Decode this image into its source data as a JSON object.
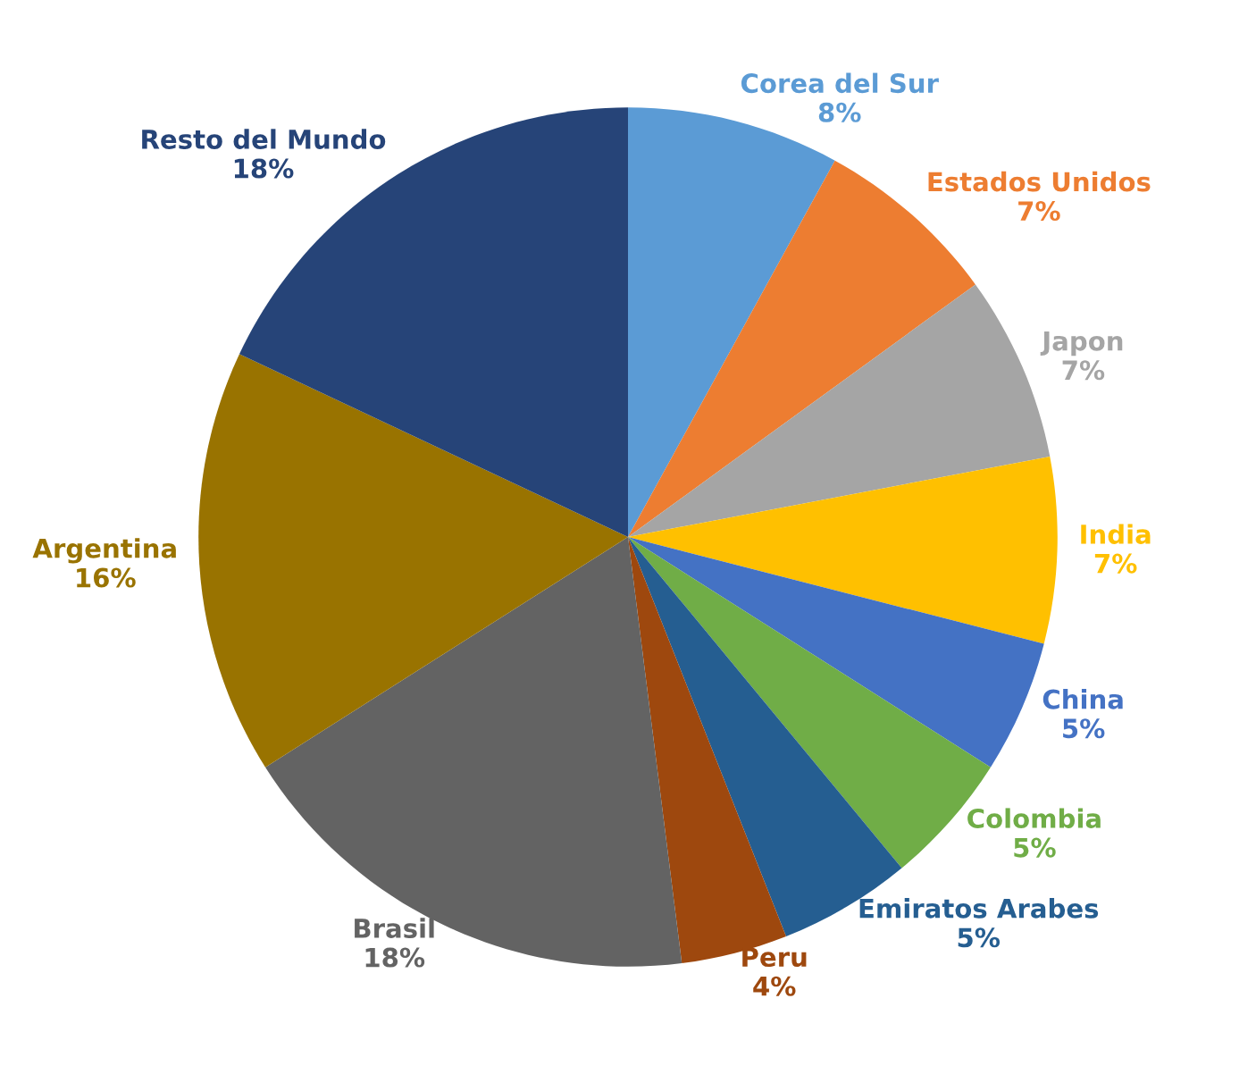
{
  "chart_data": {
    "type": "pie",
    "categories": [
      "Corea del Sur",
      "Estados Unidos",
      "Japon",
      "India",
      "China",
      "Colombia",
      "Emiratos Arabes",
      "Peru",
      "Brasil",
      "Argentina",
      "Resto del Mundo"
    ],
    "values": [
      8,
      7,
      7,
      7,
      5,
      5,
      5,
      4,
      18,
      16,
      18
    ],
    "value_labels": [
      "8%",
      "7%",
      "7%",
      "7%",
      "5%",
      "5%",
      "5%",
      "4%",
      "18%",
      "16%",
      "18%"
    ],
    "colors": [
      "#5b9bd5",
      "#ed7d31",
      "#a5a5a5",
      "#ffc000",
      "#4472c4",
      "#70ad47",
      "#255e91",
      "#9e480e",
      "#636363",
      "#997300",
      "#264478"
    ]
  }
}
